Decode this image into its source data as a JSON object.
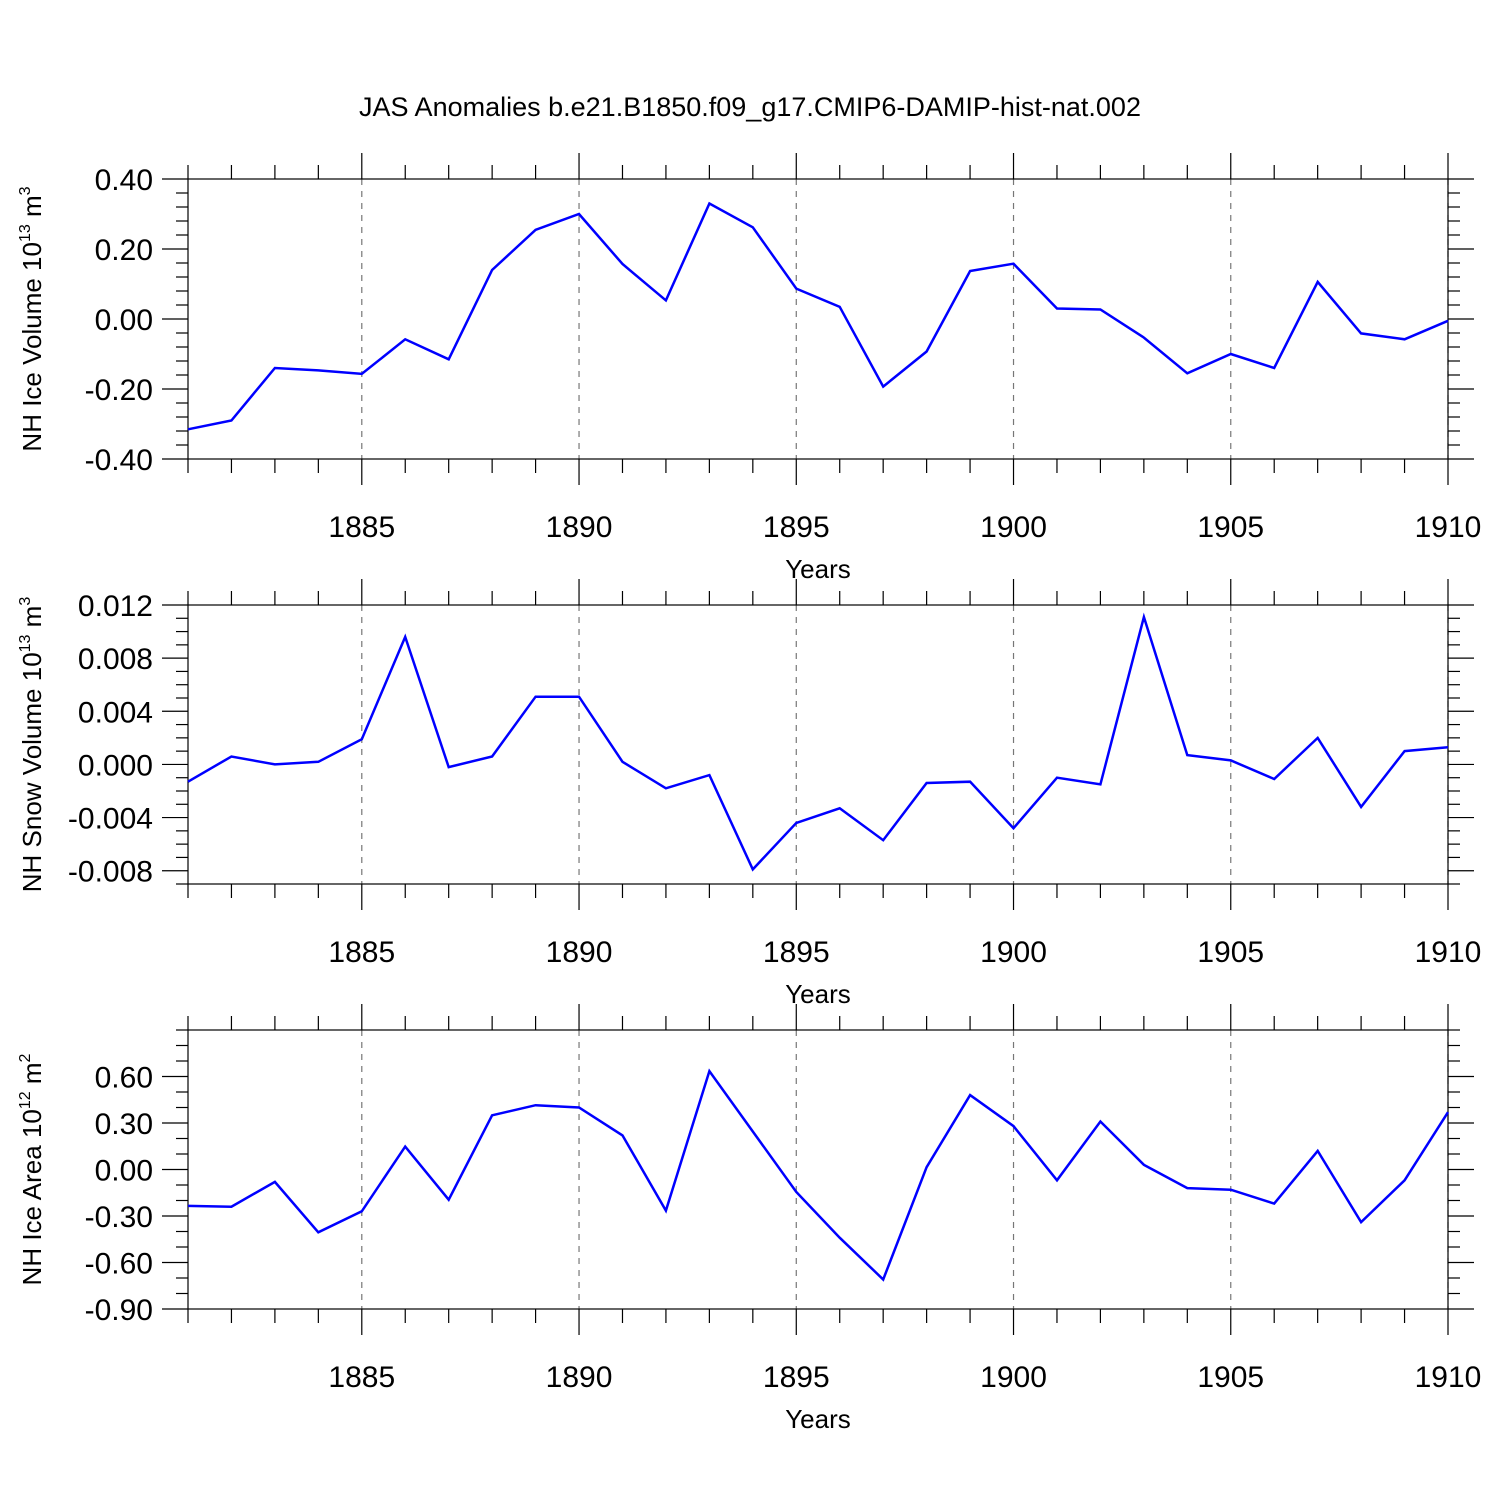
{
  "chart_data": {
    "type": "line",
    "title": "JAS Anomalies b.e21.B1850.f09_g17.CMIP6-DAMIP-hist-nat.002",
    "line_color": "#0000ff",
    "x": [
      1881,
      1882,
      1883,
      1884,
      1885,
      1886,
      1887,
      1888,
      1889,
      1890,
      1891,
      1892,
      1893,
      1894,
      1895,
      1896,
      1897,
      1898,
      1899,
      1900,
      1901,
      1902,
      1903,
      1904,
      1905,
      1906,
      1907,
      1908,
      1909,
      1910
    ],
    "xlim": [
      1881,
      1910
    ],
    "xticks": [
      1885,
      1890,
      1895,
      1900,
      1905,
      1910
    ],
    "xtick_labels": [
      "1885",
      "1890",
      "1895",
      "1900",
      "1905",
      "1910"
    ],
    "panels": [
      {
        "xlabel": "Years",
        "ylabel_main": "NH Ice Volume 10",
        "ylabel_exp": "13",
        "ylabel_unit": " m",
        "ylabel_unit_exp": "3",
        "ylim": [
          -0.4,
          0.4
        ],
        "yticks": [
          -0.4,
          -0.2,
          0.0,
          0.2,
          0.4
        ],
        "ytick_labels": [
          "-0.40",
          "-0.20",
          "0.00",
          "0.20",
          "0.40"
        ],
        "yminor_step": 0.04,
        "values": [
          -0.315,
          -0.29,
          -0.14,
          -0.147,
          -0.157,
          -0.058,
          -0.115,
          0.14,
          0.255,
          0.3,
          0.157,
          0.053,
          0.33,
          0.262,
          0.087,
          0.035,
          -0.193,
          -0.093,
          0.137,
          0.158,
          0.03,
          0.027,
          -0.053,
          -0.155,
          -0.1,
          -0.14,
          0.106,
          -0.041,
          -0.058,
          -0.005
        ]
      },
      {
        "xlabel": "Years",
        "ylabel_main": "NH Snow Volume 10",
        "ylabel_exp": "13",
        "ylabel_unit": " m",
        "ylabel_unit_exp": "3",
        "ylim": [
          -0.009,
          0.012
        ],
        "yticks": [
          -0.008,
          -0.004,
          0.0,
          0.004,
          0.008,
          0.012
        ],
        "ytick_labels": [
          "-0.008",
          "-0.004",
          "0.000",
          "0.004",
          "0.008",
          "0.012"
        ],
        "yminor_step": 0.001,
        "values": [
          -0.0013,
          0.0006,
          0.0,
          0.0002,
          0.0019,
          0.0096,
          -0.0002,
          0.0006,
          0.0051,
          0.0051,
          0.0002,
          -0.0018,
          -0.0008,
          -0.0079,
          -0.0044,
          -0.0033,
          -0.0057,
          -0.0014,
          -0.0013,
          -0.0048,
          -0.001,
          -0.0015,
          0.0111,
          0.0007,
          0.0003,
          -0.0011,
          0.002,
          -0.0032,
          0.001,
          0.0013
        ]
      },
      {
        "xlabel": "Years",
        "ylabel_main": "NH Ice Area 10",
        "ylabel_exp": "12",
        "ylabel_unit": " m",
        "ylabel_unit_exp": "2",
        "ylim": [
          -0.9,
          0.9
        ],
        "yticks": [
          -0.9,
          -0.6,
          -0.3,
          0.0,
          0.3,
          0.6
        ],
        "ytick_labels": [
          "-0.90",
          "-0.60",
          "-0.30",
          "0.00",
          "0.30",
          "0.60"
        ],
        "yminor_step": 0.1,
        "values": [
          -0.235,
          -0.24,
          -0.08,
          -0.405,
          -0.27,
          0.148,
          -0.195,
          0.35,
          0.415,
          0.4,
          0.22,
          -0.265,
          0.635,
          0.245,
          -0.145,
          -0.44,
          -0.71,
          0.015,
          0.48,
          0.28,
          -0.07,
          0.31,
          0.03,
          -0.12,
          -0.13,
          -0.22,
          0.12,
          -0.34,
          -0.07,
          0.37
        ]
      }
    ]
  }
}
